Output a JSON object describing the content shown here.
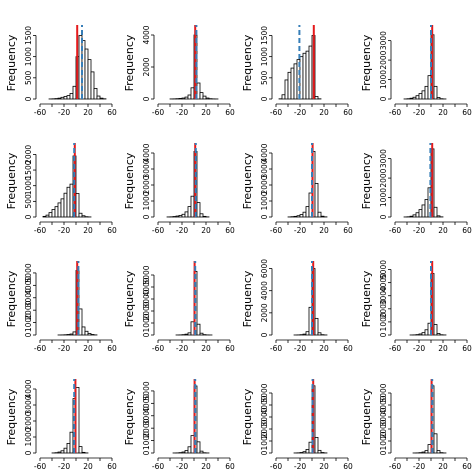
{
  "colors": {
    "bars": "#ffffff",
    "bar_edge": "#000000",
    "solid_line": "#e41a1c",
    "dashed_line": "#377eb8",
    "axes": "#000000"
  },
  "chart_data": [
    {
      "type": "bar",
      "ylabel": "Frequency",
      "xlim": [
        -60,
        60
      ],
      "x_ticks": [
        "-60",
        "-20",
        "20",
        "60"
      ],
      "ylim": [
        0,
        1700
      ],
      "y_ticks": [
        "0",
        "500",
        "1000",
        "1500"
      ],
      "bin_width": 5,
      "bin_starts": [
        -45,
        -40,
        -35,
        -30,
        -25,
        -20,
        -15,
        -10,
        -5,
        0,
        5,
        10,
        15,
        20,
        25,
        30,
        35,
        40,
        45
      ],
      "values": [
        2,
        5,
        10,
        20,
        40,
        60,
        80,
        130,
        300,
        1000,
        1500,
        1380,
        1180,
        930,
        640,
        250,
        70,
        20,
        5
      ],
      "solid_line_x": 2,
      "dashed_line_x": 10
    },
    {
      "type": "bar",
      "ylabel": "Frequency",
      "xlim": [
        -60,
        60
      ],
      "x_ticks": [
        "-60",
        "-20",
        "20",
        "60"
      ],
      "ylim": [
        0,
        4500
      ],
      "y_ticks": [
        "0",
        "2000",
        "4000"
      ],
      "bin_width": 5,
      "bin_starts": [
        -40,
        -35,
        -30,
        -25,
        -20,
        -15,
        -10,
        -5,
        0,
        5,
        10,
        15,
        20,
        25,
        30,
        35
      ],
      "values": [
        5,
        10,
        20,
        35,
        60,
        120,
        250,
        700,
        4000,
        1000,
        400,
        180,
        60,
        20,
        8,
        3
      ],
      "solid_line_x": 2,
      "dashed_line_x": 4
    },
    {
      "type": "bar",
      "ylabel": "Frequency",
      "xlim": [
        -60,
        60
      ],
      "x_ticks": [
        "-60",
        "-20",
        "20",
        "60"
      ],
      "ylim": [
        0,
        1700
      ],
      "y_ticks": [
        "0",
        "500",
        "1000",
        "1500"
      ],
      "bin_width": 5,
      "bin_starts": [
        -55,
        -50,
        -45,
        -40,
        -35,
        -30,
        -25,
        -20,
        -15,
        -10,
        -5,
        0,
        5,
        10
      ],
      "values": [
        5,
        100,
        450,
        630,
        730,
        830,
        930,
        1000,
        1080,
        1130,
        1250,
        1500,
        60,
        5
      ],
      "solid_line_x": 3,
      "dashed_line_x": -21
    },
    {
      "type": "bar",
      "ylabel": "Frequency",
      "xlim": [
        -60,
        60
      ],
      "x_ticks": [
        "-60",
        "-20",
        "20",
        "60"
      ],
      "ylim": [
        0,
        3700
      ],
      "y_ticks": [
        "0",
        "1000",
        "2000",
        "3000"
      ],
      "bin_width": 5,
      "bin_starts": [
        -45,
        -40,
        -35,
        -30,
        -25,
        -20,
        -15,
        -10,
        -5,
        0,
        5,
        10,
        15,
        20
      ],
      "values": [
        3,
        15,
        40,
        90,
        170,
        280,
        420,
        650,
        1200,
        3300,
        650,
        80,
        15,
        3
      ],
      "solid_line_x": 2,
      "dashed_line_x": 0
    },
    {
      "type": "bar",
      "ylabel": "Frequency",
      "xlim": [
        -60,
        60
      ],
      "x_ticks": [
        "-60",
        "-20",
        "20",
        "60"
      ],
      "ylim": [
        0,
        2300
      ],
      "y_ticks": [
        "0",
        "500",
        "1000",
        "1500",
        "2000"
      ],
      "bin_width": 5,
      "bin_starts": [
        -55,
        -50,
        -45,
        -40,
        -35,
        -30,
        -25,
        -20,
        -15,
        -10,
        -5,
        0,
        5,
        10,
        15,
        20
      ],
      "values": [
        20,
        60,
        140,
        240,
        330,
        450,
        580,
        760,
        950,
        1050,
        1950,
        750,
        120,
        40,
        10,
        3
      ],
      "solid_line_x": -2,
      "dashed_line_x": -3
    },
    {
      "type": "bar",
      "ylabel": "Frequency",
      "xlim": [
        -60,
        60
      ],
      "x_ticks": [
        "-60",
        "-20",
        "20",
        "60"
      ],
      "ylim": [
        0,
        4500
      ],
      "y_ticks": [
        "0",
        "1000",
        "2000",
        "3000",
        "4000"
      ],
      "bin_width": 5,
      "bin_starts": [
        -45,
        -40,
        -35,
        -30,
        -25,
        -20,
        -15,
        -10,
        -5,
        0,
        5,
        10,
        15,
        20
      ],
      "values": [
        5,
        12,
        30,
        60,
        100,
        170,
        320,
        650,
        1300,
        4100,
        900,
        200,
        40,
        8
      ],
      "solid_line_x": 2,
      "dashed_line_x": 3
    },
    {
      "type": "bar",
      "ylabel": "Frequency",
      "xlim": [
        -60,
        60
      ],
      "x_ticks": [
        "-60",
        "-20",
        "20",
        "60"
      ],
      "ylim": [
        0,
        4500
      ],
      "y_ticks": [
        "0",
        "1000",
        "2000",
        "3000",
        "4000"
      ],
      "bin_width": 5,
      "bin_starts": [
        -40,
        -35,
        -30,
        -25,
        -20,
        -15,
        -10,
        -5,
        0,
        5,
        10,
        15,
        20
      ],
      "values": [
        5,
        20,
        40,
        80,
        150,
        300,
        650,
        1500,
        4100,
        2100,
        300,
        50,
        10
      ],
      "solid_line_x": 1,
      "dashed_line_x": 0
    },
    {
      "type": "bar",
      "ylabel": "Frequency",
      "xlim": [
        -60,
        60
      ],
      "x_ticks": [
        "-60",
        "-20",
        "20",
        "60"
      ],
      "ylim": [
        0,
        3700
      ],
      "y_ticks": [
        "0",
        "1000",
        "2000",
        "3000"
      ],
      "bin_width": 5,
      "bin_starts": [
        -45,
        -40,
        -35,
        -30,
        -25,
        -20,
        -15,
        -10,
        -5,
        0,
        5,
        10,
        15
      ],
      "values": [
        3,
        12,
        40,
        110,
        220,
        380,
        620,
        900,
        1500,
        3500,
        500,
        60,
        8
      ],
      "solid_line_x": 2,
      "dashed_line_x": -1
    },
    {
      "type": "bar",
      "ylabel": "Frequency",
      "xlim": [
        -60,
        60
      ],
      "x_ticks": [
        "-60",
        "-20",
        "20",
        "60"
      ],
      "ylim": [
        0,
        5800
      ],
      "y_ticks": [
        "0",
        "1000",
        "2000",
        "3000",
        "4000",
        "5000"
      ],
      "bin_width": 5,
      "bin_starts": [
        -30,
        -25,
        -20,
        -15,
        -10,
        -5,
        0,
        5,
        10,
        15,
        20,
        25,
        30
      ],
      "values": [
        3,
        8,
        20,
        40,
        80,
        250,
        5200,
        2100,
        650,
        300,
        120,
        40,
        10
      ],
      "solid_line_x": 2,
      "dashed_line_x": 4
    },
    {
      "type": "bar",
      "ylabel": "Frequency",
      "xlim": [
        -60,
        60
      ],
      "x_ticks": [
        "-60",
        "-20",
        "20",
        "60"
      ],
      "ylim": [
        0,
        6000
      ],
      "y_ticks": [
        "0",
        "1000",
        "2000",
        "3000",
        "4000",
        "5000"
      ],
      "bin_width": 5,
      "bin_starts": [
        -30,
        -25,
        -20,
        -15,
        -10,
        -5,
        0,
        5,
        10,
        15,
        20,
        25
      ],
      "values": [
        3,
        10,
        30,
        70,
        180,
        1100,
        5300,
        900,
        150,
        30,
        8,
        3
      ],
      "solid_line_x": 1,
      "dashed_line_x": 2
    },
    {
      "type": "bar",
      "ylabel": "Frequency",
      "xlim": [
        -60,
        60
      ],
      "x_ticks": [
        "-60",
        "-20",
        "20",
        "60"
      ],
      "ylim": [
        0,
        6500
      ],
      "y_ticks": [
        "0",
        "2000",
        "4000",
        "6000"
      ],
      "bin_width": 5,
      "bin_starts": [
        -30,
        -25,
        -20,
        -15,
        -10,
        -5,
        0,
        5,
        10,
        15,
        20
      ],
      "values": [
        3,
        10,
        30,
        80,
        300,
        2500,
        6000,
        1500,
        200,
        30,
        5
      ],
      "solid_line_x": 2,
      "dashed_line_x": 0
    },
    {
      "type": "bar",
      "ylabel": "Frequency",
      "xlim": [
        -60,
        60
      ],
      "x_ticks": [
        "-60",
        "-20",
        "20",
        "60"
      ],
      "ylim": [
        0,
        5500
      ],
      "y_ticks": [
        "0",
        "1000",
        "2000",
        "3000",
        "4000",
        "5000"
      ],
      "bin_width": 5,
      "bin_starts": [
        -35,
        -30,
        -25,
        -20,
        -15,
        -10,
        -5,
        0,
        5,
        10,
        15,
        20
      ],
      "values": [
        3,
        10,
        30,
        80,
        180,
        400,
        900,
        4700,
        800,
        120,
        20,
        5
      ],
      "solid_line_x": 2,
      "dashed_line_x": 0
    },
    {
      "type": "bar",
      "ylabel": "Frequency",
      "xlim": [
        -60,
        60
      ],
      "x_ticks": [
        "-60",
        "-20",
        "20",
        "60"
      ],
      "ylim": [
        0,
        4500
      ],
      "y_ticks": [
        "0",
        "1000",
        "2000",
        "3000",
        "4000"
      ],
      "bin_width": 5,
      "bin_starts": [
        -40,
        -35,
        -30,
        -25,
        -20,
        -15,
        -10,
        -5,
        0,
        5,
        10,
        15
      ],
      "values": [
        5,
        20,
        60,
        140,
        300,
        600,
        1300,
        3400,
        4100,
        400,
        40,
        5
      ],
      "solid_line_x": -1,
      "dashed_line_x": -3
    },
    {
      "type": "bar",
      "ylabel": "Frequency",
      "xlim": [
        -60,
        60
      ],
      "x_ticks": [
        "-60",
        "-20",
        "20",
        "60"
      ],
      "ylim": [
        0,
        5800
      ],
      "y_ticks": [
        "0",
        "1000",
        "2000",
        "3000",
        "4000",
        "5000"
      ],
      "bin_width": 5,
      "bin_starts": [
        -35,
        -30,
        -25,
        -20,
        -15,
        -10,
        -5,
        0,
        5,
        10,
        15,
        20
      ],
      "values": [
        3,
        10,
        30,
        80,
        200,
        500,
        1400,
        5400,
        900,
        150,
        20,
        5
      ],
      "solid_line_x": 1,
      "dashed_line_x": 2
    },
    {
      "type": "bar",
      "ylabel": "Frequency",
      "xlim": [
        -60,
        60
      ],
      "x_ticks": [
        "-60",
        "-20",
        "20",
        "60"
      ],
      "ylim": [
        0,
        6000
      ],
      "y_ticks": [
        "0",
        "1000",
        "2000",
        "3000",
        "4000",
        "5000"
      ],
      "bin_width": 5,
      "bin_starts": [
        -30,
        -25,
        -20,
        -15,
        -10,
        -5,
        0,
        5,
        10,
        15,
        20
      ],
      "values": [
        5,
        15,
        40,
        110,
        300,
        900,
        5600,
        1300,
        220,
        40,
        8
      ],
      "solid_line_x": 2,
      "dashed_line_x": 1
    },
    {
      "type": "bar",
      "ylabel": "Frequency",
      "xlim": [
        -60,
        60
      ],
      "x_ticks": [
        "-60",
        "-20",
        "20",
        "60"
      ],
      "ylim": [
        0,
        6000
      ],
      "y_ticks": [
        "0",
        "1000",
        "2000",
        "3000",
        "4000",
        "5000"
      ],
      "bin_width": 5,
      "bin_starts": [
        -30,
        -25,
        -20,
        -15,
        -10,
        -5,
        0,
        5,
        10,
        15,
        20
      ],
      "values": [
        3,
        10,
        30,
        80,
        200,
        700,
        5600,
        1600,
        200,
        30,
        5
      ],
      "solid_line_x": 1,
      "dashed_line_x": 2
    }
  ]
}
